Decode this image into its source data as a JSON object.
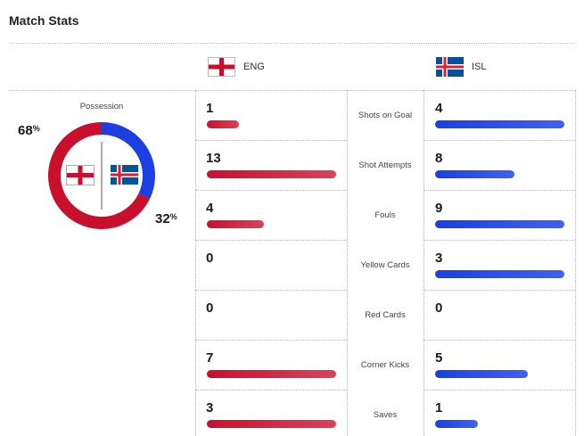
{
  "header": {
    "title": "Match Stats"
  },
  "teams": {
    "home": {
      "code": "ENG",
      "flag": "england-flag",
      "color": "#c8102e"
    },
    "away": {
      "code": "ISL",
      "flag": "iceland-flag",
      "color": "#1b3fe0"
    }
  },
  "possession": {
    "label": "Possession",
    "home_value": "68",
    "away_value": "32",
    "unit": "%",
    "home_color": "#c8102e",
    "away_color": "#1b3fe0"
  },
  "stats": [
    {
      "label": "Shots on Goal",
      "home": "1",
      "away": "4",
      "home_fraction": 0.25,
      "away_fraction": 1.0
    },
    {
      "label": "Shot Attempts",
      "home": "13",
      "away": "8",
      "home_fraction": 1.0,
      "away_fraction": 0.615
    },
    {
      "label": "Fouls",
      "home": "4",
      "away": "9",
      "home_fraction": 0.444,
      "away_fraction": 1.0
    },
    {
      "label": "Yellow Cards",
      "home": "0",
      "away": "3",
      "home_fraction": 0,
      "away_fraction": 1.0
    },
    {
      "label": "Red Cards",
      "home": "0",
      "away": "0",
      "home_fraction": 0,
      "away_fraction": 0
    },
    {
      "label": "Corner Kicks",
      "home": "7",
      "away": "5",
      "home_fraction": 1.0,
      "away_fraction": 0.714
    },
    {
      "label": "Saves",
      "home": "3",
      "away": "1",
      "home_fraction": 1.0,
      "away_fraction": 0.333
    }
  ]
}
